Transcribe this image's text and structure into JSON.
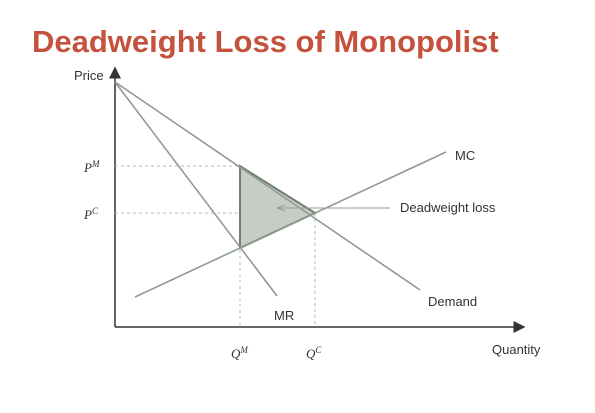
{
  "title": "Deadweight Loss of Monopolist",
  "axes": {
    "y_label": "Price",
    "x_label": "Quantity"
  },
  "curves": {
    "mc": "MC",
    "demand": "Demand",
    "mr": "MR"
  },
  "annotation": "Deadweight loss",
  "prices": [
    {
      "base": "P",
      "sup": "M"
    },
    {
      "base": "P",
      "sup": "C"
    }
  ],
  "quantities": [
    {
      "base": "Q",
      "sup": "M"
    },
    {
      "base": "Q",
      "sup": "C"
    }
  ]
}
